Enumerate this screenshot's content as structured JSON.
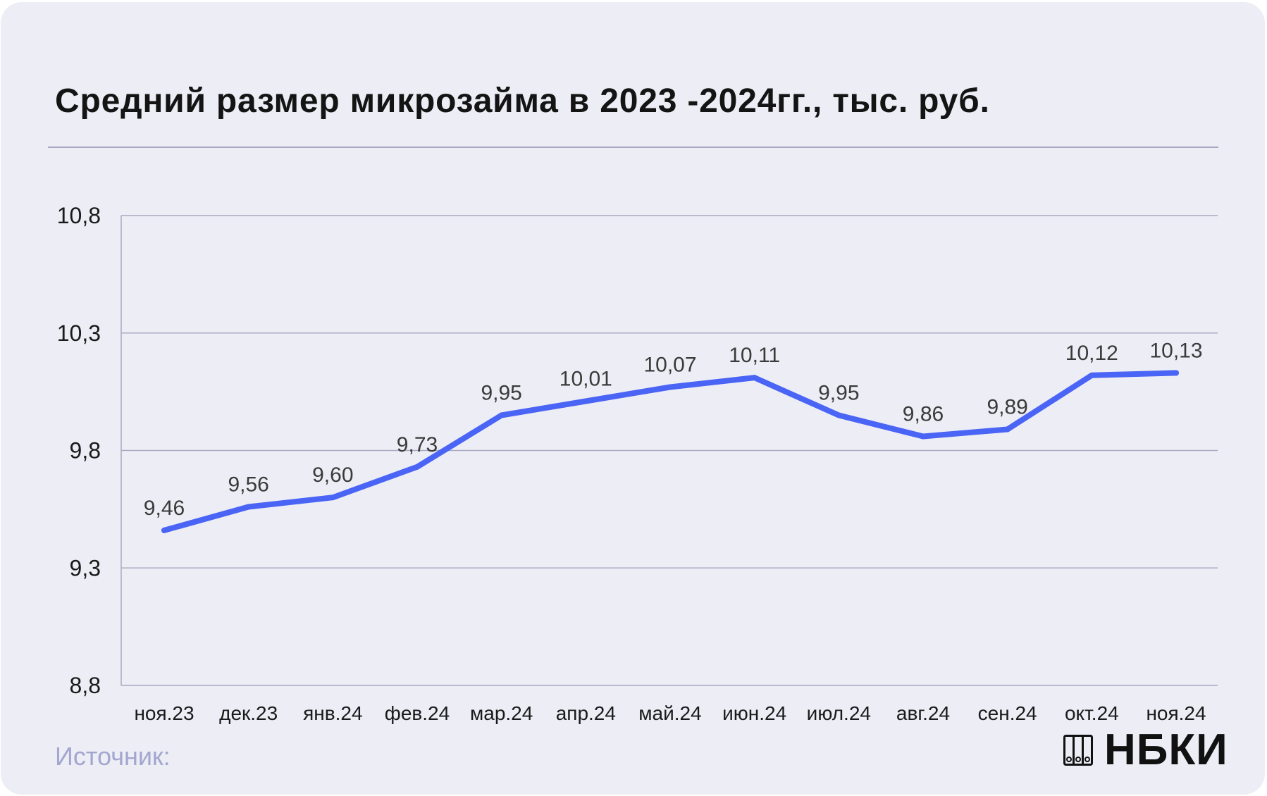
{
  "title": "Средний размер микрозайма в 2023 -2024гг., тыс. руб.",
  "source_label": "Источник:",
  "brand": "НБКИ",
  "colors": {
    "background": "#ecedf5",
    "line": "#4a64f5",
    "grid": "#a7aac1",
    "source": "#a3a7cf"
  },
  "chart_data": {
    "type": "line",
    "categories": [
      "ноя.23",
      "дек.23",
      "янв.24",
      "фев.24",
      "мар.24",
      "апр.24",
      "май.24",
      "июн.24",
      "июл.24",
      "авг.24",
      "сен.24",
      "окт.24",
      "ноя.24"
    ],
    "series": [
      {
        "values": [
          9.46,
          9.56,
          9.6,
          9.73,
          9.95,
          10.01,
          10.07,
          10.11,
          9.95,
          9.86,
          9.89,
          10.12,
          10.13
        ],
        "labels": [
          "9,46",
          "9,56",
          "9,60",
          "9,73",
          "9,95",
          "10,01",
          "10,07",
          "10,11",
          "9,95",
          "9,86",
          "9,89",
          "10,12",
          "10,13"
        ]
      }
    ],
    "y_ticks": [
      8.8,
      9.3,
      9.8,
      10.3,
      10.8
    ],
    "y_tick_labels": [
      "8,8",
      "9,3",
      "9,8",
      "10,3",
      "10,8"
    ],
    "ylim": [
      8.8,
      10.8
    ],
    "grid": true,
    "legend": "none"
  }
}
